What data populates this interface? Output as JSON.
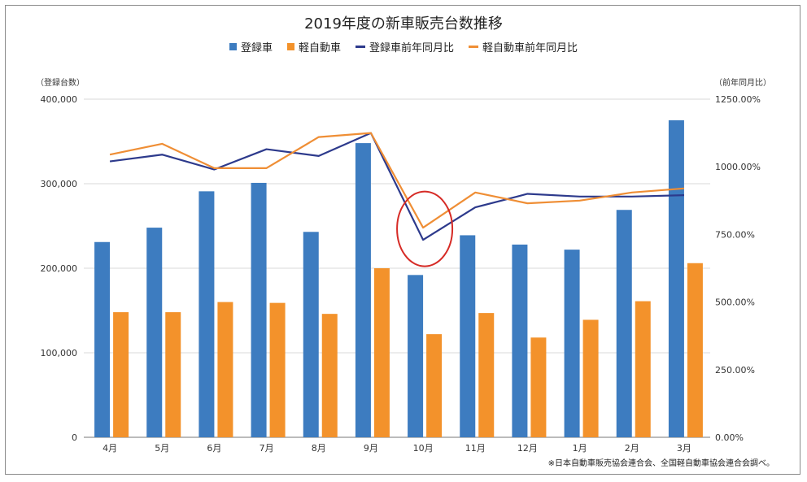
{
  "chart_data": {
    "type": "bar",
    "title": "2019年度の新車販売台数推移",
    "categories": [
      "4月",
      "5月",
      "6月",
      "7月",
      "8月",
      "9月",
      "10月",
      "11月",
      "12月",
      "1月",
      "2月",
      "3月"
    ],
    "series": [
      {
        "name": "登録車",
        "kind": "bar",
        "axis": "left",
        "color": "#3d7cc0",
        "values": [
          231000,
          248000,
          291000,
          301000,
          243000,
          348000,
          192000,
          239000,
          228000,
          222000,
          269000,
          375000
        ]
      },
      {
        "name": "軽自動車",
        "kind": "bar",
        "axis": "left",
        "color": "#f3922b",
        "values": [
          148000,
          148000,
          160000,
          159000,
          146000,
          200000,
          122000,
          147000,
          118000,
          139000,
          161000,
          206000
        ]
      },
      {
        "name": "登録車前年同月比",
        "kind": "line",
        "axis": "right",
        "color": "#2d3a8c",
        "values": [
          1020,
          1045,
          990,
          1065,
          1040,
          1125,
          730,
          850,
          900,
          890,
          890,
          895
        ]
      },
      {
        "name": "軽自動車前年同月比",
        "kind": "line",
        "axis": "right",
        "color": "#ef8e35",
        "values": [
          1045,
          1085,
          995,
          995,
          1110,
          1125,
          775,
          905,
          865,
          875,
          905,
          920
        ]
      }
    ],
    "left_axis": {
      "label": "（登録台数）",
      "ylim": [
        0,
        400000
      ],
      "ticks": [
        "0",
        "100,000",
        "200,000",
        "300,000",
        "400,000"
      ]
    },
    "right_axis": {
      "label": "（前年同月比）",
      "ylim": [
        0,
        1250
      ],
      "ticks": [
        "0.00%",
        "250.00%",
        "500.00%",
        "750.00%",
        "1000.00%",
        "1250.00%"
      ]
    },
    "annotation": {
      "type": "circle",
      "category": "10月",
      "color": "#d62b26"
    },
    "grid": "horizontal",
    "legend_position": "top"
  },
  "source_note": "※日本自動車販売協会連合会、全国軽自動車協会連合会調べ。"
}
